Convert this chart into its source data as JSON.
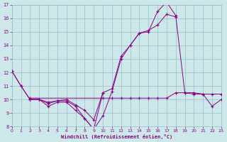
{
  "background_color": "#cce8e8",
  "grid_color": "#99bbcc",
  "line_color": "#880088",
  "xlim": [
    0,
    23
  ],
  "ylim": [
    8,
    17
  ],
  "yticks": [
    8,
    9,
    10,
    11,
    12,
    13,
    14,
    15,
    16,
    17
  ],
  "xticks": [
    0,
    1,
    2,
    3,
    4,
    5,
    6,
    7,
    8,
    9,
    10,
    11,
    12,
    13,
    14,
    15,
    16,
    17,
    18,
    19,
    20,
    21,
    22,
    23
  ],
  "xlabel": "Windchill (Refroidissement éolien,°C)",
  "s1x": [
    0,
    1,
    2,
    3,
    4,
    5,
    6,
    7,
    8,
    9,
    10,
    11,
    12,
    13,
    14,
    15,
    16,
    17,
    18,
    19,
    20,
    21,
    22,
    23
  ],
  "s1y": [
    12.1,
    11.0,
    10.0,
    10.0,
    9.5,
    9.8,
    9.8,
    9.2,
    8.6,
    7.8,
    8.8,
    10.6,
    13.0,
    14.0,
    14.9,
    15.0,
    16.5,
    17.2,
    16.2,
    10.5,
    10.5,
    10.4,
    9.5,
    10.0
  ],
  "s2x": [
    0,
    1,
    2,
    3,
    4,
    5,
    6,
    7,
    8,
    9,
    10,
    11,
    12,
    13,
    14,
    15,
    16,
    17,
    18
  ],
  "s2y": [
    12.1,
    11.0,
    10.0,
    10.0,
    9.8,
    9.9,
    10.0,
    9.6,
    9.2,
    8.5,
    10.5,
    10.8,
    13.2,
    14.0,
    14.9,
    15.1,
    15.5,
    16.3,
    16.1
  ],
  "s3x": [
    2,
    3,
    4,
    5,
    6,
    7,
    8,
    9,
    10
  ],
  "s3y": [
    10.0,
    10.0,
    9.7,
    9.9,
    9.9,
    9.5,
    8.6,
    7.8,
    10.5
  ],
  "s4x": [
    2,
    10,
    11,
    12,
    13,
    14,
    15,
    16,
    17,
    18,
    19,
    20,
    21,
    22,
    23
  ],
  "s4y": [
    10.1,
    10.1,
    10.1,
    10.1,
    10.1,
    10.1,
    10.1,
    10.1,
    10.1,
    10.5,
    10.5,
    10.4,
    10.4,
    10.4,
    10.4
  ]
}
